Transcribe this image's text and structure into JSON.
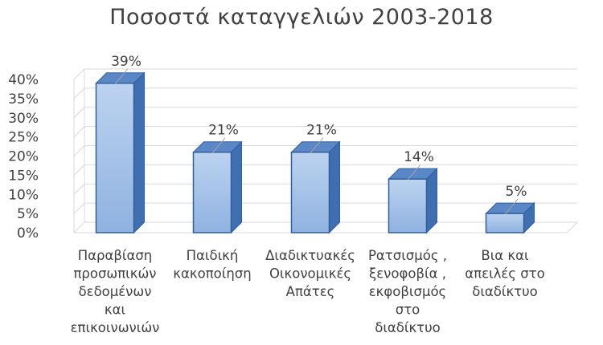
{
  "chart_data": {
    "type": "bar",
    "title": "Ποσοστά καταγγελιών 2003-2018",
    "categories": [
      [
        "Παραβίαση",
        "προσωπικών",
        "δεδομένων",
        "και",
        "επικοινωνιών"
      ],
      [
        "Παιδική",
        "κακοποίηση"
      ],
      [
        "Διαδικτυακές",
        "Οικονομικές",
        "Απάτες"
      ],
      [
        "Ρατσισμός ,",
        "ξενοφοβία ,",
        "εκφοβισμός",
        "στο",
        "διαδίκτυο"
      ],
      [
        "Βια και",
        "απειλές στο",
        "διαδίκτυο"
      ]
    ],
    "values": [
      39,
      21,
      21,
      14,
      5
    ],
    "data_labels": [
      "39%",
      "21%",
      "21%",
      "14%",
      "5%"
    ],
    "yticks": [
      "0%",
      "5%",
      "10%",
      "15%",
      "20%",
      "25%",
      "30%",
      "35%",
      "40%"
    ],
    "ylim": [
      0,
      40
    ],
    "grid": true,
    "bar_style": "3d-column",
    "colors": {
      "bar_front_top": "#bcd3f0",
      "bar_front_bottom": "#8fb2e0",
      "bar_side": "#3f6fb0",
      "bar_top": "#5a87c6",
      "bar_outline": "#2f5f9e",
      "grid": "#d9d9d9",
      "text": "#404040"
    }
  }
}
